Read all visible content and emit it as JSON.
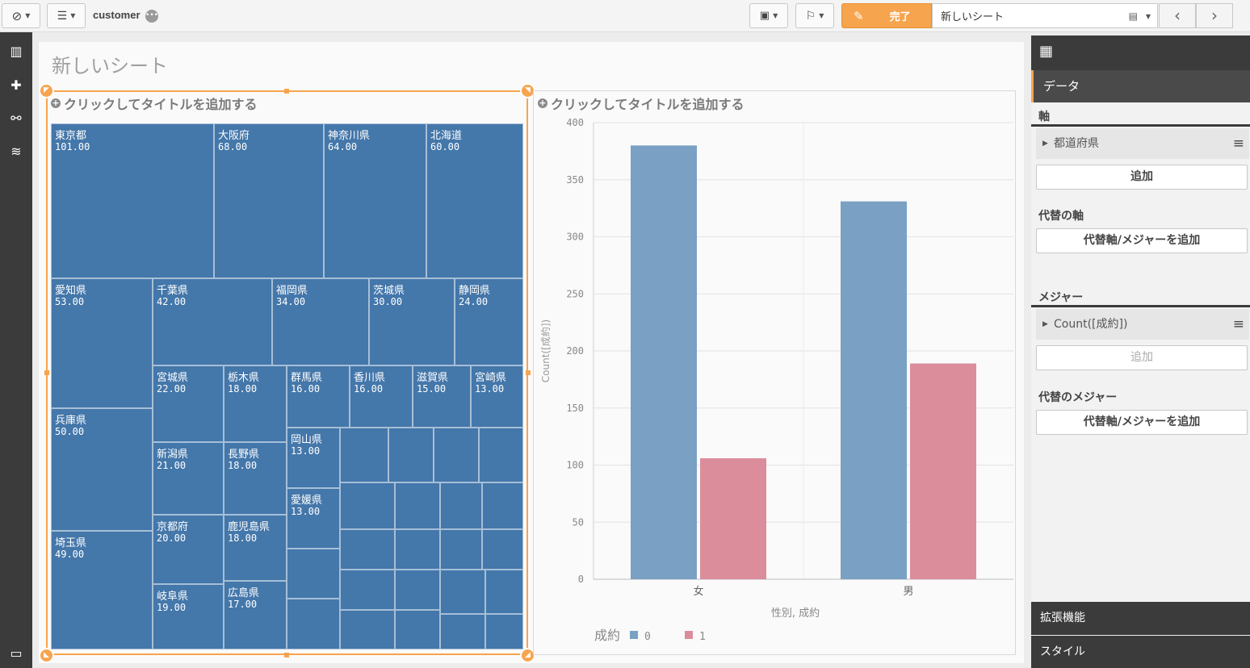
{
  "toolbar": {
    "app_name": "customer",
    "done_label": "完了",
    "sheet_name": "新しいシート",
    "prev_arrow": "‹",
    "next_arrow": "›"
  },
  "sheet": {
    "title": "新しいシート"
  },
  "treemap": {
    "title_placeholder": "クリックしてタイトルを追加する",
    "cells": [
      {
        "name": "東京都",
        "value": "101.00"
      },
      {
        "name": "大阪府",
        "value": "68.00"
      },
      {
        "name": "神奈川県",
        "value": "64.00"
      },
      {
        "name": "北海道",
        "value": "60.00"
      },
      {
        "name": "愛知県",
        "value": "53.00"
      },
      {
        "name": "千葉県",
        "value": "42.00"
      },
      {
        "name": "福岡県",
        "value": "34.00"
      },
      {
        "name": "茨城県",
        "value": "30.00"
      },
      {
        "name": "静岡県",
        "value": "24.00"
      },
      {
        "name": "兵庫県",
        "value": "50.00"
      },
      {
        "name": "宮城県",
        "value": "22.00"
      },
      {
        "name": "栃木県",
        "value": "18.00"
      },
      {
        "name": "群馬県",
        "value": "16.00"
      },
      {
        "name": "香川県",
        "value": "16.00"
      },
      {
        "name": "滋賀県",
        "value": "15.00"
      },
      {
        "name": "宮崎県",
        "value": "13.00"
      },
      {
        "name": "新潟県",
        "value": "21.00"
      },
      {
        "name": "長野県",
        "value": "18.00"
      },
      {
        "name": "岡山県",
        "value": "13.00"
      },
      {
        "name": "愛媛県",
        "value": "13.00"
      },
      {
        "name": "京都府",
        "value": "20.00"
      },
      {
        "name": "鹿児島県",
        "value": "18.00"
      },
      {
        "name": "埼玉県",
        "value": "49.00"
      },
      {
        "name": "岐阜県",
        "value": "19.00"
      },
      {
        "name": "広島県",
        "value": "17.00"
      }
    ]
  },
  "chart_data": {
    "type": "bar",
    "title_placeholder": "クリックしてタイトルを追加する",
    "categories": [
      "女",
      "男"
    ],
    "series": [
      {
        "name": "0",
        "values": [
          380,
          331
        ],
        "color": "#7aa0c4"
      },
      {
        "name": "1",
        "values": [
          106,
          189
        ],
        "color": "#db8d9c"
      }
    ],
    "ylabel": "Count([成約])",
    "xlabel": "性別, 成約",
    "ylim": [
      0,
      400
    ],
    "yticks": [
      "0",
      "50",
      "100",
      "150",
      "200",
      "250",
      "300",
      "350",
      "400"
    ],
    "legend_title": "成約",
    "legend_placement": "bottom-left",
    "grid": true
  },
  "panel": {
    "data_tab": "データ",
    "dimensions_label": "軸",
    "dimension_field": "都道府県",
    "add_label": "追加",
    "alt_dimensions_label": "代替の軸",
    "alt_add_label": "代替軸/メジャーを追加",
    "measures_label": "メジャー",
    "measure_field": "Count([成約])",
    "measure_add_label": "追加",
    "alt_measures_label": "代替のメジャー",
    "alt_measures_add_label": "代替軸/メジャーを追加",
    "extensions_label": "拡張機能",
    "style_label": "スタイル"
  },
  "colors": {
    "accent": "#f7a44f",
    "treemap_fill": "#4477aa",
    "dark": "#3b3b3b"
  }
}
